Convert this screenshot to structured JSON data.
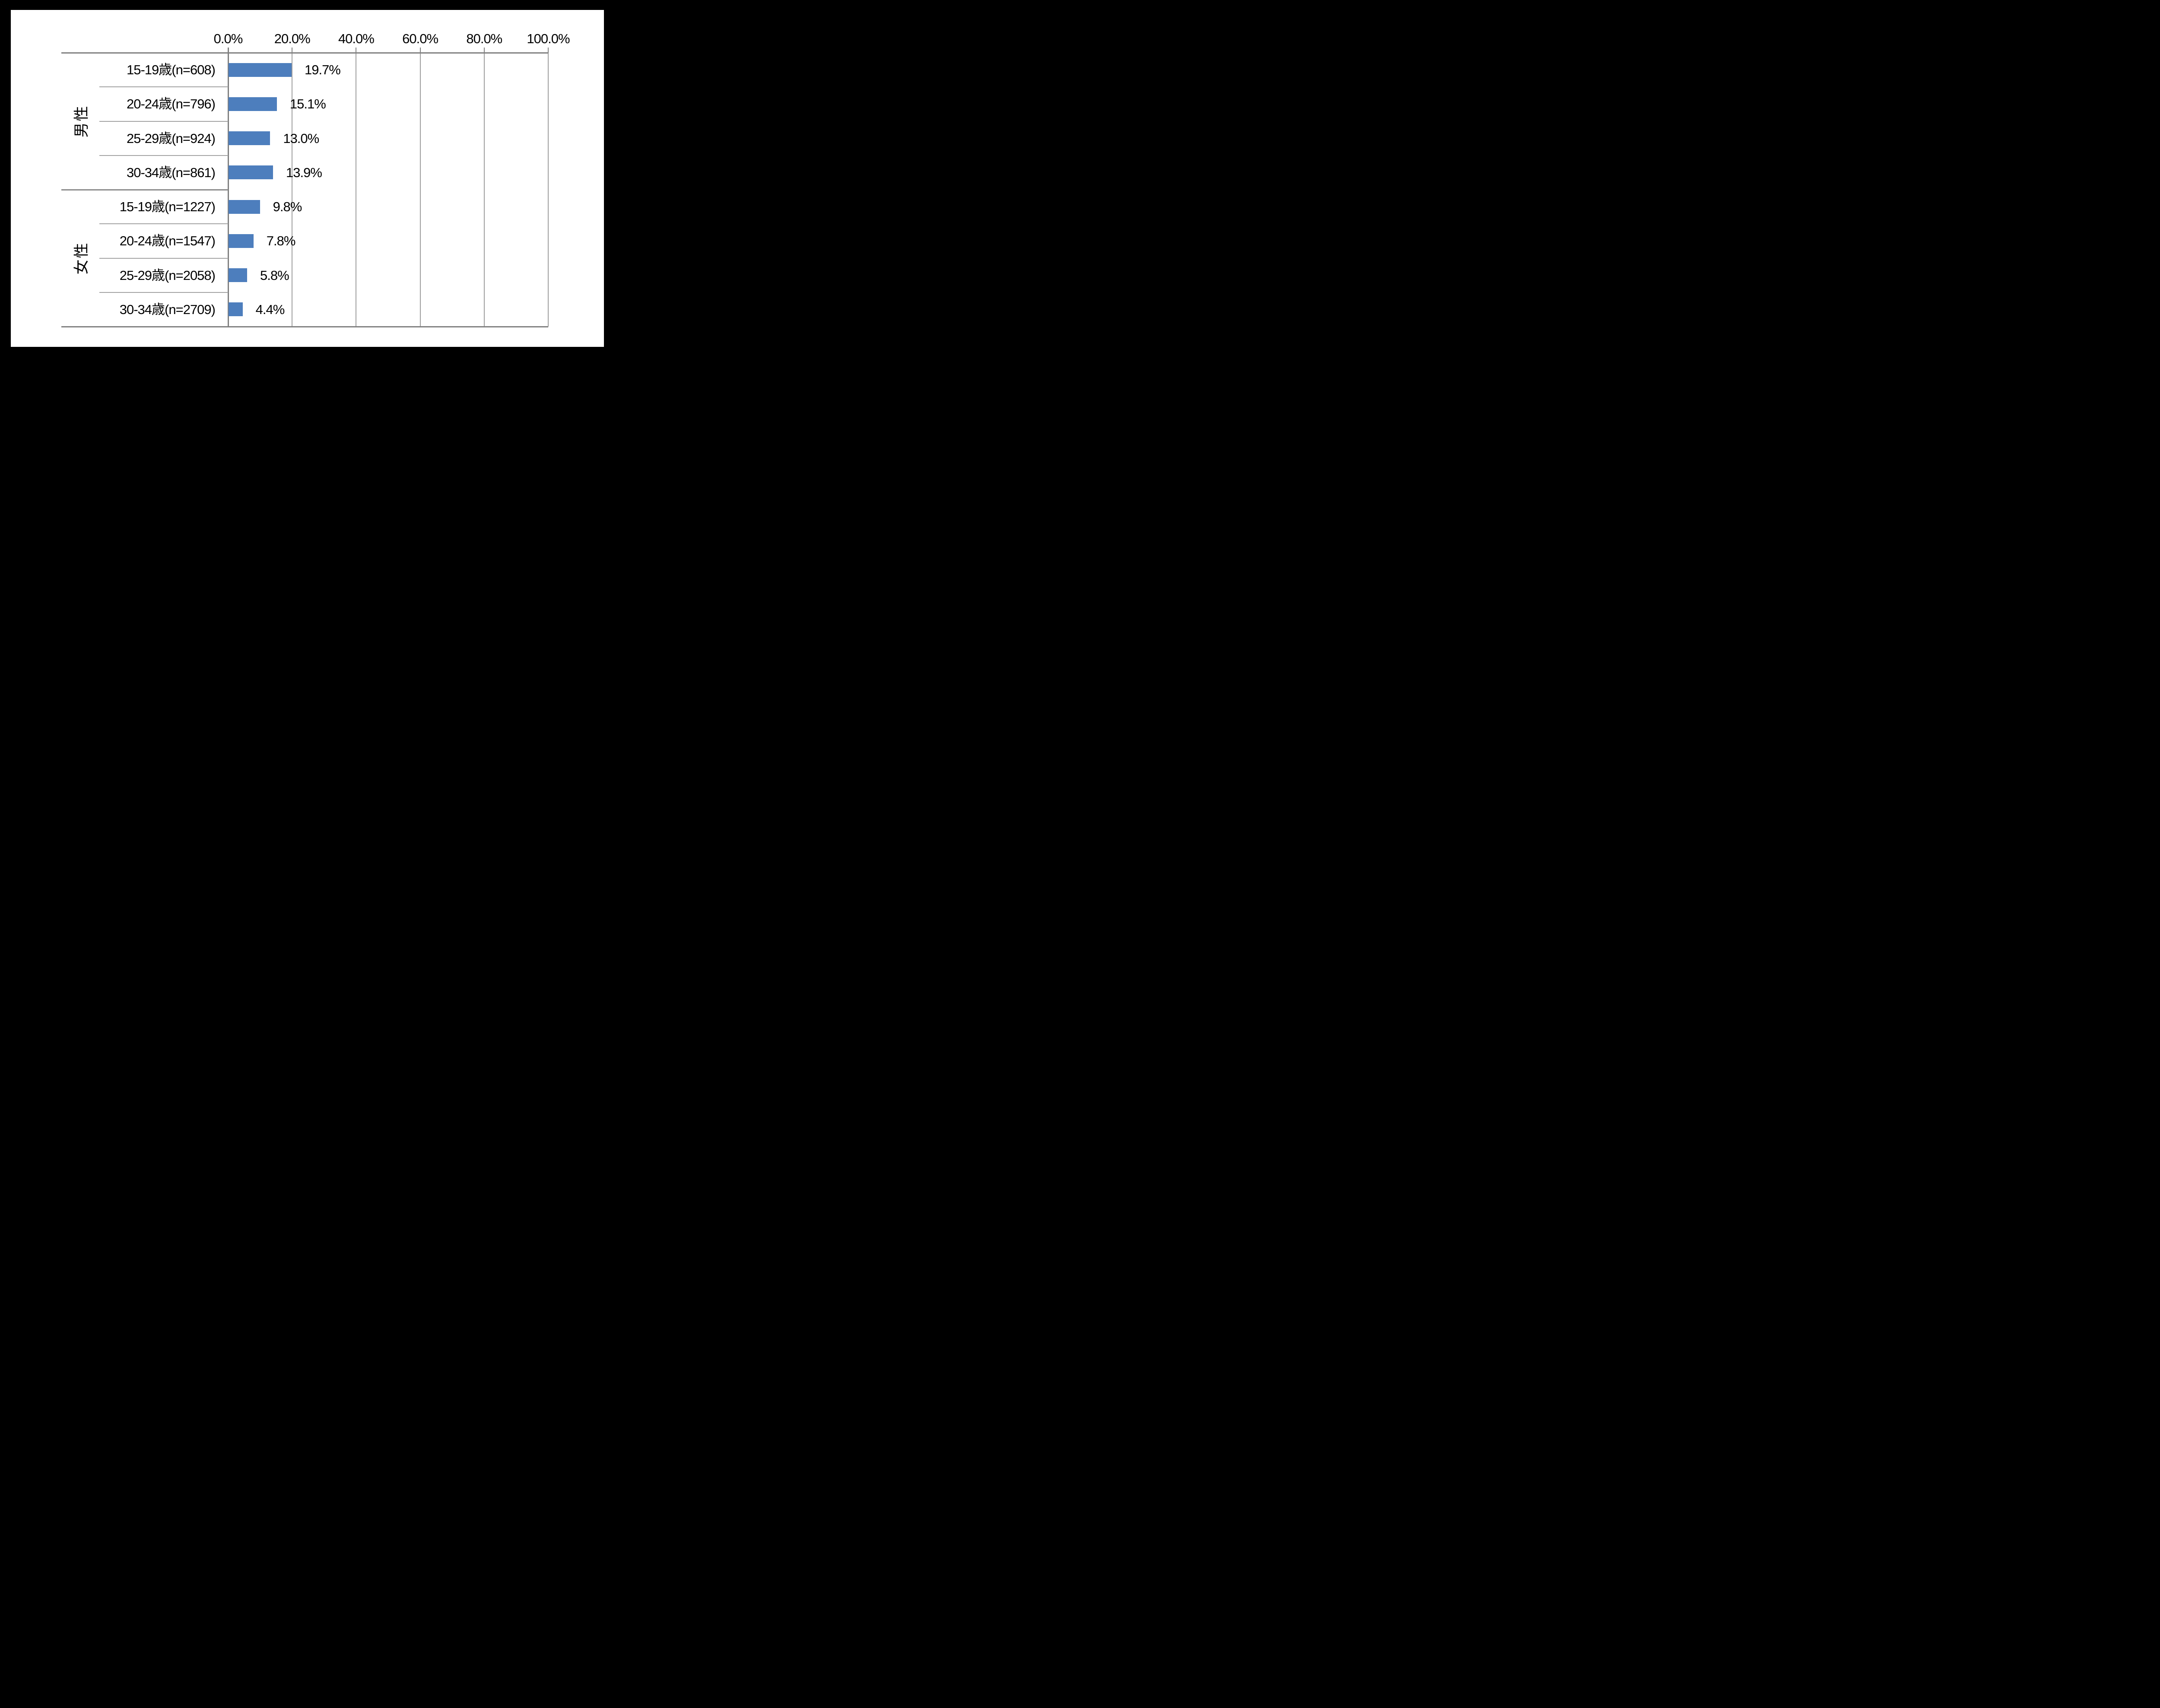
{
  "chart_data": {
    "type": "bar",
    "orientation": "horizontal",
    "title": "",
    "x_axis": {
      "position": "top",
      "range": [
        0,
        100
      ],
      "tick_labels": [
        "0.0%",
        "20.0%",
        "40.0%",
        "60.0%",
        "80.0%",
        "100.0%"
      ],
      "tick_values": [
        0,
        20,
        40,
        60,
        80,
        100
      ],
      "grid": true
    },
    "groups": [
      {
        "label": "男性",
        "rows": [
          {
            "category": "15-19歳(n=608)",
            "n": 608,
            "value": 19.7,
            "value_label": "19.7%"
          },
          {
            "category": "20-24歳(n=796)",
            "n": 796,
            "value": 15.1,
            "value_label": "15.1%"
          },
          {
            "category": "25-29歳(n=924)",
            "n": 924,
            "value": 13.0,
            "value_label": "13.0%"
          },
          {
            "category": "30-34歳(n=861)",
            "n": 861,
            "value": 13.9,
            "value_label": "13.9%"
          }
        ]
      },
      {
        "label": "女性",
        "rows": [
          {
            "category": "15-19歳(n=1227)",
            "n": 1227,
            "value": 9.8,
            "value_label": "9.8%"
          },
          {
            "category": "20-24歳(n=1547)",
            "n": 1547,
            "value": 7.8,
            "value_label": "7.8%"
          },
          {
            "category": "25-29歳(n=2058)",
            "n": 2058,
            "value": 5.8,
            "value_label": "5.8%"
          },
          {
            "category": "30-34歳(n=2709)",
            "n": 2709,
            "value": 4.4,
            "value_label": "4.4%"
          }
        ]
      }
    ],
    "legend": null,
    "colors": {
      "bar": "#4d7ebd",
      "gridline": "#9e9e9e",
      "axis_line": "#808080",
      "row_separator": "#a3a3a3",
      "group_separator": "#8a8a8a",
      "text": "#000000",
      "chart_background": "#ffffff",
      "page_background": "#000000"
    }
  }
}
